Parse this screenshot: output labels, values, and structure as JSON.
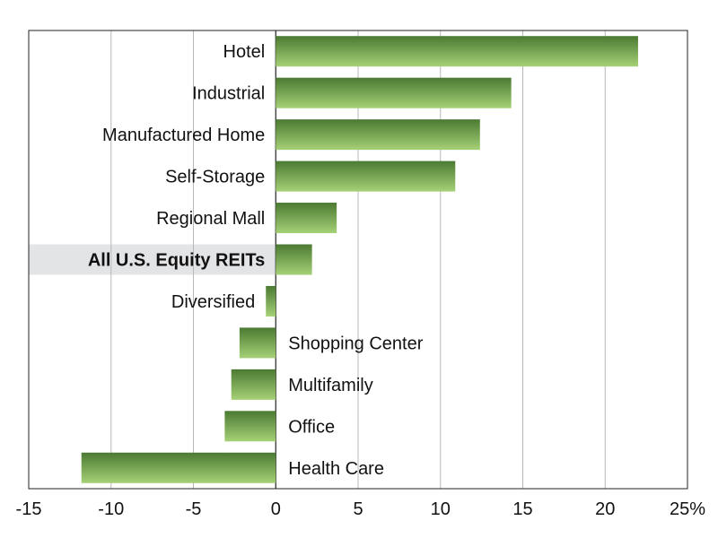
{
  "chart_data": {
    "type": "bar",
    "orientation": "horizontal",
    "categories": [
      "Hotel",
      "Industrial",
      "Manufactured Home",
      "Self-Storage",
      "Regional Mall",
      "All U.S. Equity REITs",
      "Diversified",
      "Shopping Center",
      "Multifamily",
      "Office",
      "Health Care"
    ],
    "values": [
      22.0,
      14.3,
      12.4,
      10.9,
      3.7,
      2.2,
      -0.6,
      -2.2,
      -2.7,
      -3.1,
      -11.8
    ],
    "highlight": "All U.S. Equity REITs",
    "xlim": [
      -15,
      25
    ],
    "xticks": [
      -15,
      -10,
      -5,
      0,
      5,
      10,
      15,
      20,
      25
    ],
    "xtick_labels": [
      "-15",
      "-10",
      "-5",
      "0",
      "5",
      "10",
      "15",
      "20",
      "25%"
    ],
    "grid": "vertical",
    "title": "",
    "xlabel": "",
    "ylabel": "",
    "colors": {
      "bar_dark": "#4b7a32",
      "bar_light": "#a6d177",
      "highlight_band": "#e3e4e6",
      "grid": "#b8b8b8",
      "axis": "#222222"
    }
  }
}
